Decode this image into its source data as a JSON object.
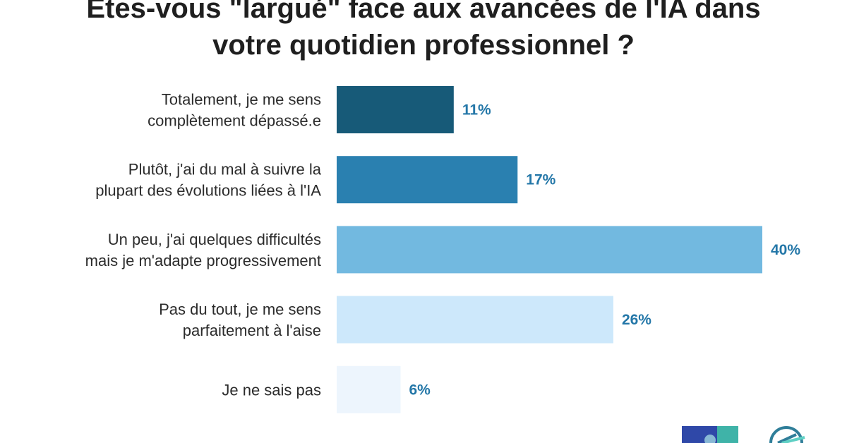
{
  "title": {
    "line1": "Êtes-vous \"largué\" face aux avancées de l'IA dans",
    "line2": "votre quotidien professionnel ?"
  },
  "chart_data": {
    "type": "bar",
    "orientation": "horizontal",
    "categories": [
      [
        "Totalement, je me sens",
        "complètement dépassé.e"
      ],
      [
        "Plutôt, j'ai du mal à suivre la",
        "plupart des évolutions liées à l'IA"
      ],
      [
        "Un peu, j'ai quelques difficultés",
        "mais je m'adapte progressivement"
      ],
      [
        "Pas du tout, je me sens",
        "parfaitement à l'aise"
      ],
      [
        "Je ne sais pas"
      ]
    ],
    "values": [
      11,
      17,
      40,
      26,
      6
    ],
    "value_labels": [
      "11%",
      "17%",
      "40%",
      "26%",
      "6%"
    ],
    "colors": [
      "#175a78",
      "#2a80b0",
      "#72b9e0",
      "#cde8fb",
      "#edf5fd"
    ],
    "value_label_color": "#2477a8",
    "xlim": [
      0,
      40
    ],
    "grid": false,
    "legend": "none"
  },
  "logos": [
    "logo-left",
    "logo-right"
  ]
}
